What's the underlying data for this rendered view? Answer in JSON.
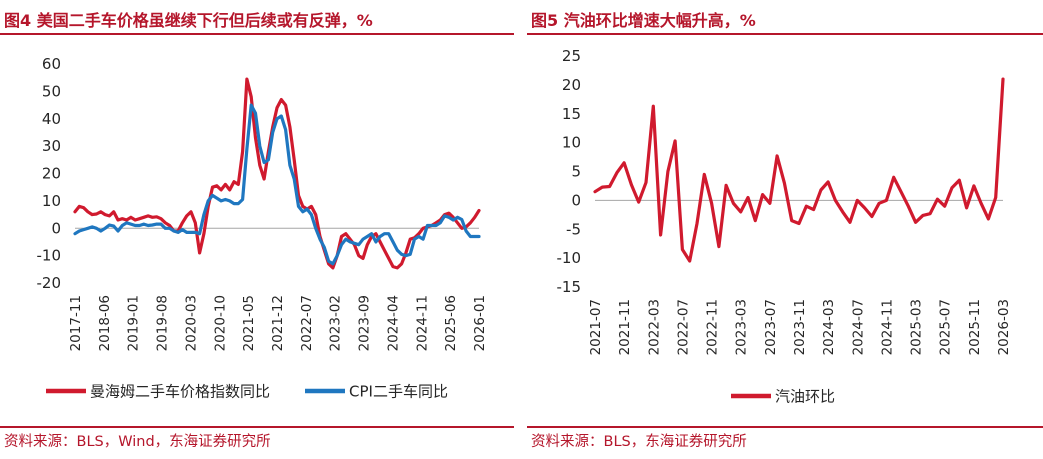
{
  "left": {
    "title": "图4  美国二手车价格虽继续下行但后续或有反弹，%",
    "source": "资料来源：BLS，Wind，东海证券研究所"
  },
  "right": {
    "title": "图5  汽油环比增速大幅升高，%",
    "source": "资料来源：BLS，东海证券研究所"
  },
  "colors": {
    "accent": "#b5162b",
    "red_series": "#d01a2e",
    "blue_series": "#1f77c0"
  },
  "chart_data": [
    {
      "type": "line",
      "title": "美国二手车价格虽继续下行但后续或有反弹，%",
      "xlabel": "",
      "ylabel": "",
      "ylim": [
        -20,
        60
      ],
      "yticks": [
        -20,
        -10,
        0,
        10,
        20,
        30,
        40,
        50,
        60
      ],
      "x_start": "2017-11",
      "tick_labels": [
        "2017-11",
        "2018-06",
        "2019-01",
        "2019-08",
        "2020-03",
        "2020-10",
        "2021-05",
        "2021-12",
        "2022-07",
        "2023-02",
        "2023-09",
        "2024-04",
        "2024-11",
        "2025-06",
        "2026-01"
      ],
      "legend_position": "bottom",
      "series": [
        {
          "name": "曼海姆二手车价格指数同比",
          "color": "#d01a2e",
          "values": [
            6,
            8,
            7.5,
            6,
            5,
            5.2,
            6,
            5,
            4.5,
            6,
            3,
            3.5,
            3,
            4,
            3,
            3.5,
            4,
            4.5,
            4,
            4.2,
            3.5,
            2,
            1,
            -1,
            -1,
            2,
            4.5,
            6,
            2,
            -9,
            -2,
            8,
            15,
            15.5,
            14,
            16,
            14,
            17,
            16,
            28,
            54.5,
            48,
            33,
            23,
            18,
            28,
            37,
            44,
            47,
            45,
            37,
            25,
            12,
            8,
            7,
            8,
            5,
            -3,
            -8,
            -13,
            -14.5,
            -10,
            -3,
            -2,
            -4,
            -6,
            -10,
            -11,
            -6,
            -3,
            -2,
            -5,
            -8,
            -11,
            -14,
            -14.5,
            -13,
            -9,
            -4,
            -3.5,
            -2,
            0,
            0.5,
            1,
            2,
            3,
            5,
            5.5,
            4,
            2,
            0,
            0.5,
            2,
            4,
            6.5
          ],
          "display_count": 95
        },
        {
          "name": "CPI二手车同比",
          "color": "#1f77c0",
          "values": [
            -2,
            -1,
            -0.5,
            0,
            0.5,
            0,
            -1,
            0,
            1.2,
            0.8,
            -1,
            1,
            2,
            1.5,
            1,
            1,
            1.5,
            1,
            1.2,
            1.5,
            1.5,
            0,
            0,
            -1,
            -1.5,
            -0.5,
            -1.5,
            -1.5,
            -1.5,
            -2,
            5,
            10,
            12,
            11,
            10,
            10.5,
            10,
            9,
            9,
            10.5,
            29,
            45,
            42,
            30,
            24,
            25,
            35,
            40,
            41,
            36,
            23,
            18,
            8,
            6,
            7,
            5,
            0,
            -4,
            -7,
            -12,
            -13,
            -10,
            -6,
            -4,
            -5,
            -5.5,
            -6,
            -4,
            -3,
            -2,
            -5,
            -3,
            -2,
            -2,
            -5,
            -8,
            -9.5,
            -10,
            -9.5,
            -4,
            -3,
            -4,
            1,
            1,
            1,
            2,
            4.5,
            4,
            3,
            4,
            3.2,
            -1,
            -3,
            -3,
            -3
          ],
          "display_count": 95
        }
      ]
    },
    {
      "type": "line",
      "title": "汽油环比增速大幅升高，%",
      "xlabel": "",
      "ylabel": "",
      "ylim": [
        -15,
        25
      ],
      "yticks": [
        -15,
        -10,
        -5,
        0,
        5,
        10,
        15,
        20,
        25
      ],
      "x_start": "2021-07",
      "tick_labels": [
        "2021-07",
        "2021-11",
        "2022-03",
        "2022-07",
        "2022-11",
        "2023-03",
        "2023-07",
        "2023-11",
        "2024-03",
        "2024-07",
        "2024-11",
        "2025-03",
        "2025-07",
        "2025-11",
        "2026-03"
      ],
      "legend_position": "bottom",
      "series": [
        {
          "name": "汽油环比",
          "color": "#d01a2e",
          "values": [
            1.5,
            2.3,
            2.4,
            4.8,
            6.5,
            2.7,
            -0.3,
            3.1,
            16.3,
            -6,
            5,
            10.3,
            -8.5,
            -10.5,
            -4,
            4.5,
            -0.5,
            -8,
            2.6,
            -0.5,
            -2,
            0.5,
            -3.5,
            1,
            -0.5,
            7.7,
            3,
            -3.5,
            -4,
            -1,
            -1.6,
            1.8,
            3.2,
            0,
            -2,
            -3.8,
            0,
            -1.3,
            -2.8,
            -0.5,
            0,
            4,
            1.5,
            -1,
            -3.8,
            -2.6,
            -2.3,
            0.2,
            -1,
            2.2,
            3.5,
            -1.3,
            2.5,
            -0.5,
            -3.2,
            0.5,
            21
          ]
        }
      ]
    }
  ]
}
